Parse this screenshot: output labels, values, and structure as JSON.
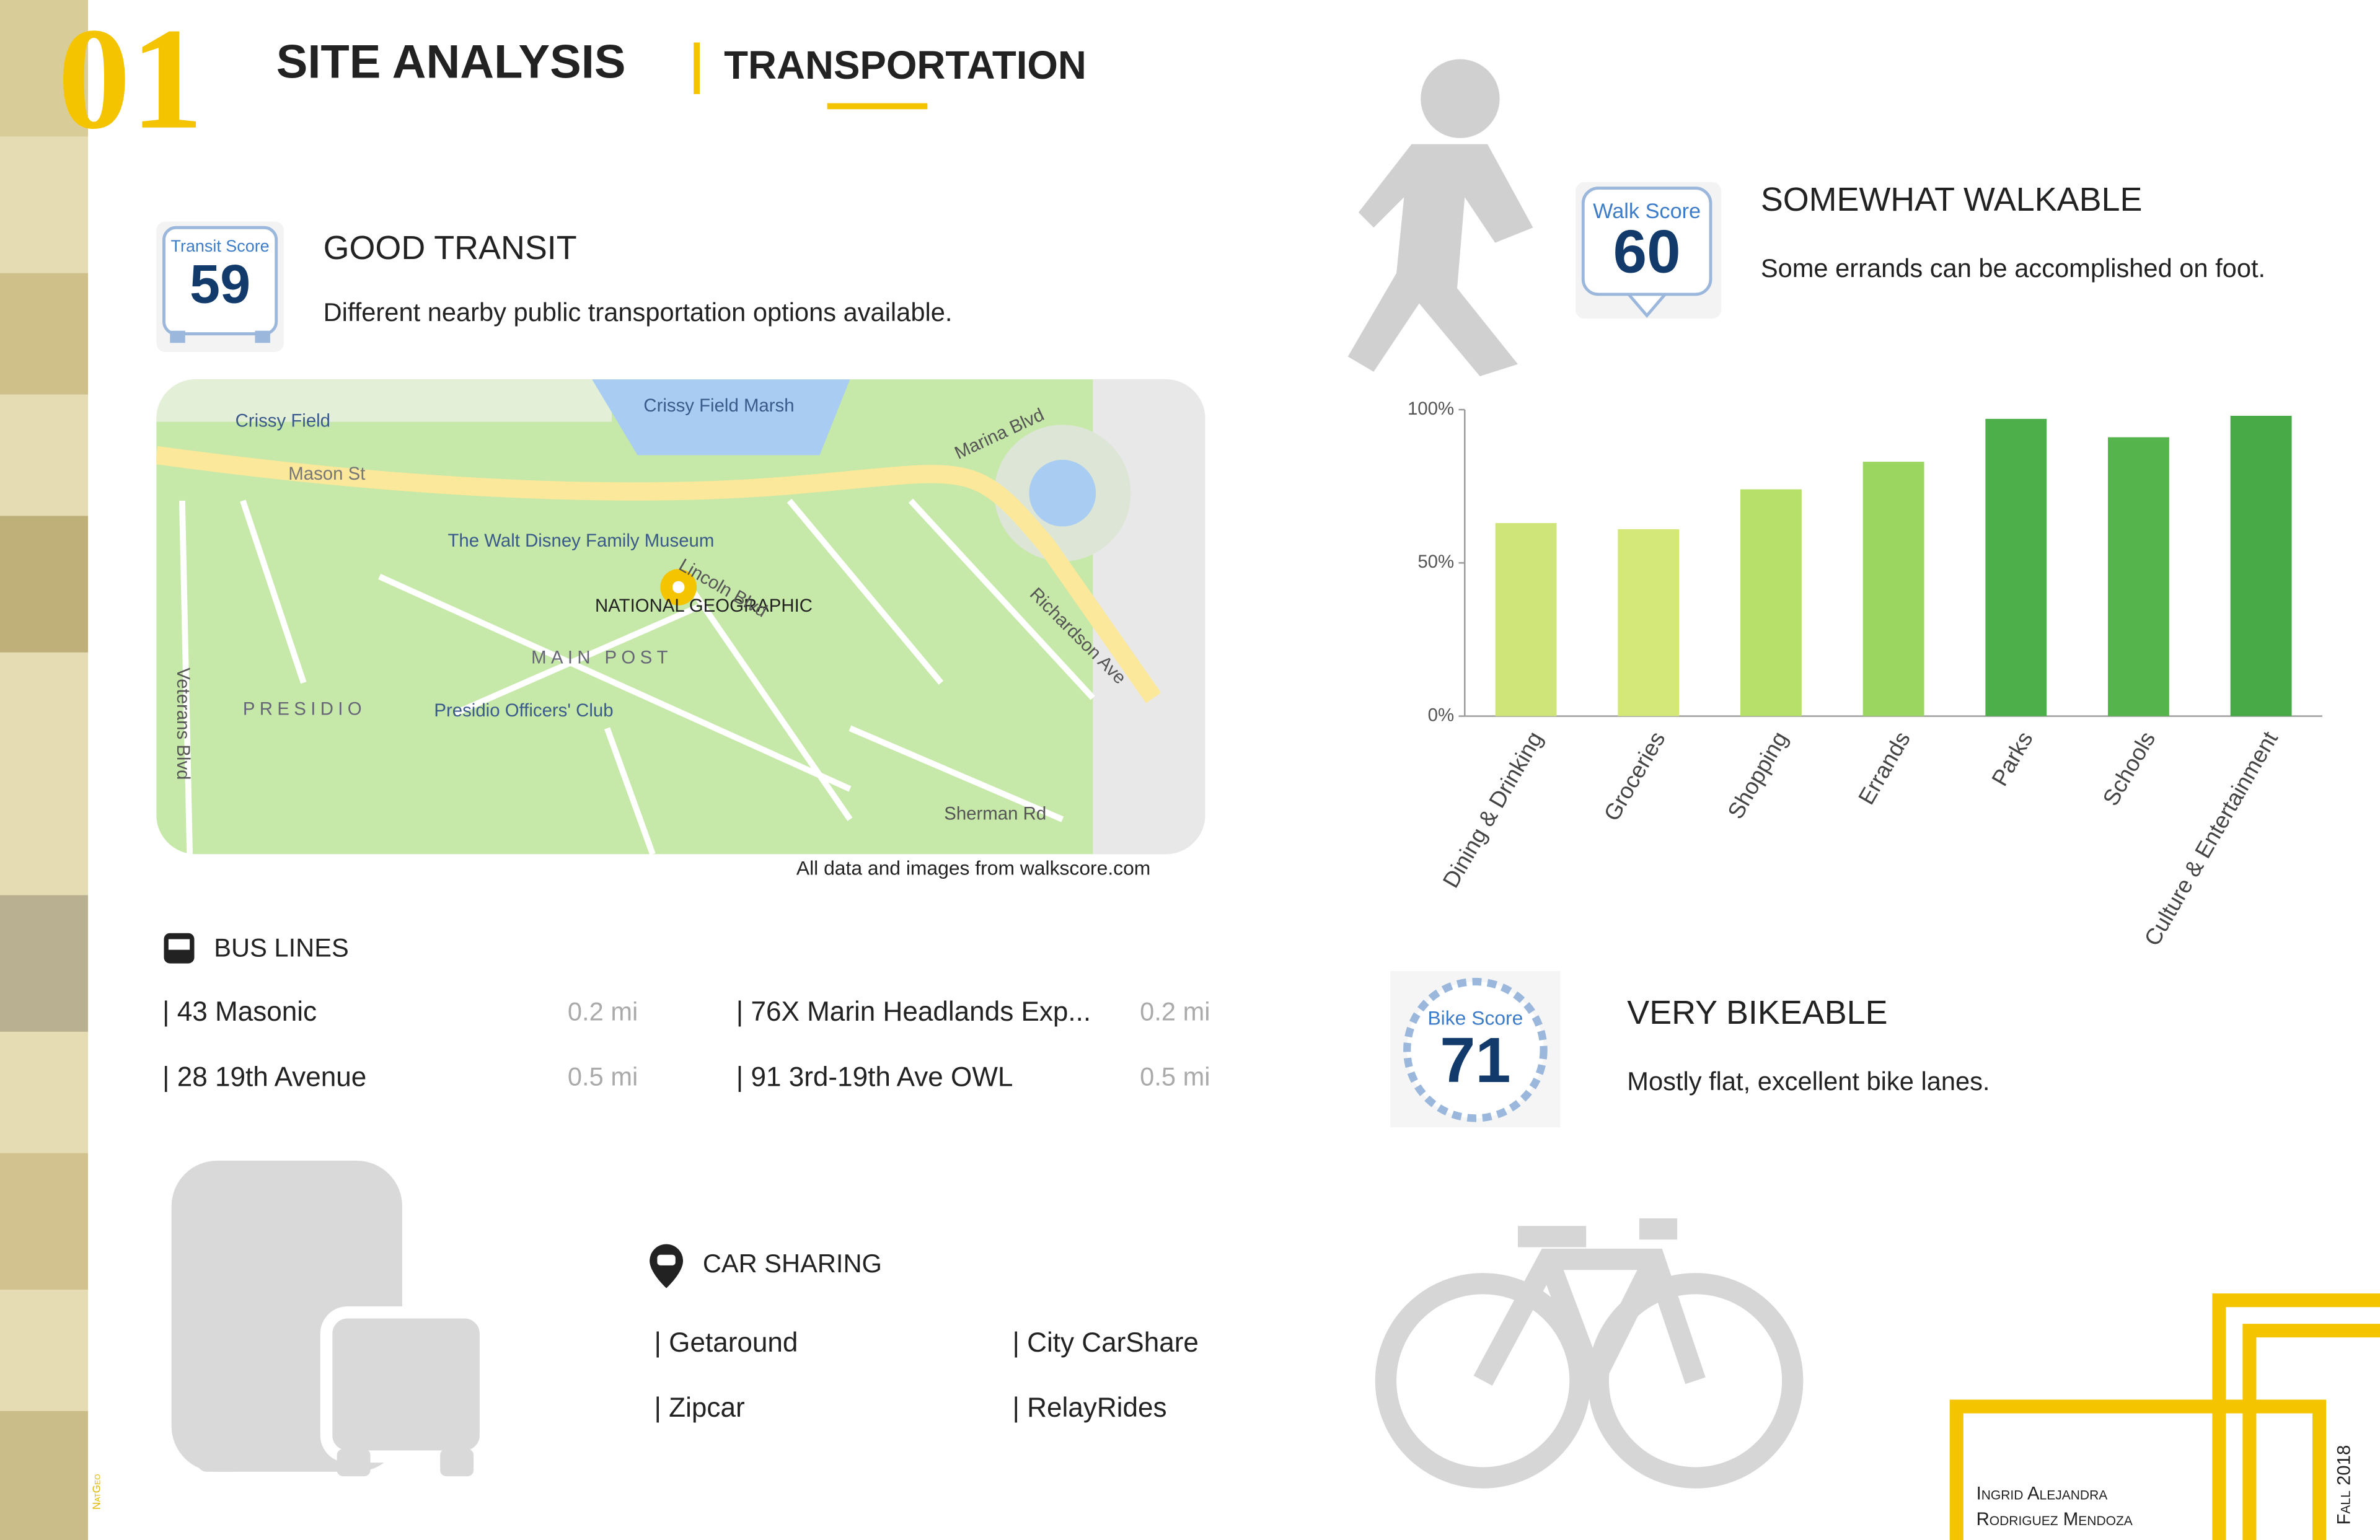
{
  "header": {
    "number": "01",
    "title": "SITE ANALYSIS",
    "subtitle": "TRANSPORTATION"
  },
  "sidebar": {
    "label": "NatGeo"
  },
  "transit": {
    "badge_label": "Transit Score",
    "score": "59",
    "heading": "GOOD TRANSIT",
    "description": "Different nearby public transportation options available."
  },
  "map": {
    "labels": [
      "Crissy Field",
      "Crissy Field Marsh",
      "Mason St",
      "Marina Blvd",
      "The Walt Disney Family Museum",
      "NATIONAL GEOGRAPHIC",
      "Lincoln Blvd",
      "MAIN POST",
      "PRESIDIO",
      "Presidio Officers' Club",
      "Veterans Blvd",
      "Richardson Ave",
      "Sherman Rd"
    ],
    "credit": "All data and images from walkscore.com"
  },
  "bus_lines": {
    "heading": "BUS LINES",
    "lines": [
      {
        "name": "| 43 Masonic",
        "distance": "0.2 mi"
      },
      {
        "name": "| 76X Marin Headlands Exp...",
        "distance": "0.2 mi"
      },
      {
        "name": "| 28 19th Avenue",
        "distance": "0.5 mi"
      },
      {
        "name": "| 91 3rd-19th Ave OWL",
        "distance": "0.5 mi"
      }
    ]
  },
  "car_sharing": {
    "heading": "CAR SHARING",
    "services": [
      "| Getaround",
      "| City CarShare",
      "| Zipcar",
      "| RelayRides"
    ]
  },
  "walk": {
    "badge_label": "Walk Score",
    "score": "60",
    "heading": "SOMEWHAT WALKABLE",
    "description": "Some errands can be accomplished on foot."
  },
  "chart_data": {
    "type": "bar",
    "categories": [
      "Dining & Drinking",
      "Groceries",
      "Shopping",
      "Errands",
      "Parks",
      "Schools",
      "Culture & Entertainment"
    ],
    "values": [
      63,
      61,
      74,
      83,
      97,
      91,
      98
    ],
    "colors": [
      "#cfe57a",
      "#d3e878",
      "#b6e06a",
      "#9bd661",
      "#4caf4a",
      "#55b44c",
      "#48aa46"
    ],
    "ylim": [
      0,
      100
    ],
    "yticks": [
      {
        "value": 0,
        "label": "0%"
      },
      {
        "value": 50,
        "label": "50%"
      },
      {
        "value": 100,
        "label": "100%"
      }
    ],
    "grid": false
  },
  "bike": {
    "badge_label": "Bike Score",
    "score": "71",
    "heading": "VERY BIKEABLE",
    "description": "Mostly flat, excellent bike lanes."
  },
  "footer": {
    "author_line1": "Ingrid Alejandra",
    "author_line2": "Rodriguez Mendoza",
    "date": "Fall 2018"
  }
}
